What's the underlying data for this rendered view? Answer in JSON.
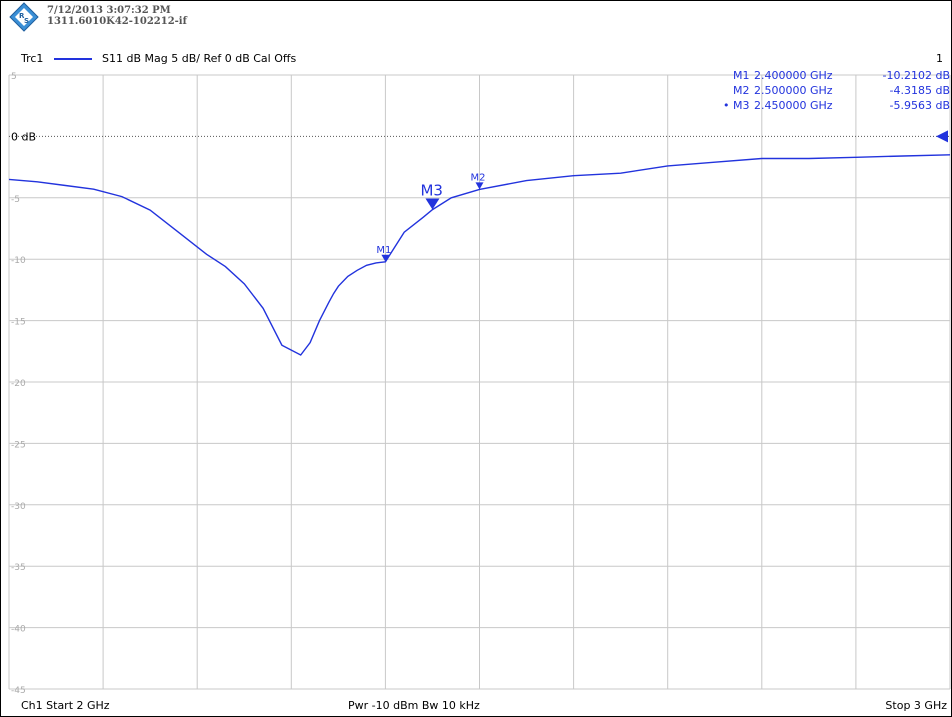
{
  "header": {
    "timestamp": "7/12/2013 3:07:32 PM",
    "device_id": "1311.6010K42-102212-if"
  },
  "trace_bar": {
    "trace_name": "Trc1",
    "trace_desc": "S11  dB Mag  5 dB/ Ref 0 dB  Cal Offs",
    "channel_number": "1"
  },
  "markers_table": [
    {
      "active": "",
      "name": "M1",
      "freq": "2.400000  GHz",
      "value": "-10.2102 dB"
    },
    {
      "active": "",
      "name": "M2",
      "freq": "2.500000  GHz",
      "value": "-4.3185 dB"
    },
    {
      "active": "•",
      "name": "M3",
      "freq": "2.450000  GHz",
      "value": "-5.9563 dB"
    }
  ],
  "footer": {
    "start": "Ch1  Start  2 GHz",
    "middle": "Pwr  -10 dBm  Bw  10 kHz",
    "stop": "Stop  3 GHz"
  },
  "colors": {
    "trace": "#2233dd",
    "grid": "#c8c8c8",
    "reference_line": "#555555"
  },
  "chart_data": {
    "type": "line",
    "title": "",
    "xlabel": "",
    "ylabel": "",
    "xlim": [
      2.0,
      3.0
    ],
    "ylim": [
      -45,
      5
    ],
    "x_unit": "GHz",
    "y_unit": "dB",
    "y_tick_labels": [
      "5",
      "0 dB",
      "-5",
      "-10",
      "-15",
      "-20",
      "-25",
      "-30",
      "-35",
      "-40",
      "-45"
    ],
    "y_ticks": [
      5,
      0,
      -5,
      -10,
      -15,
      -20,
      -25,
      -30,
      -35,
      -40,
      -45
    ],
    "x_divisions": 10,
    "grid": true,
    "reference_level": 0,
    "series": [
      {
        "name": "S11",
        "x": [
          2.0,
          2.03,
          2.06,
          2.09,
          2.12,
          2.15,
          2.18,
          2.21,
          2.23,
          2.25,
          2.27,
          2.29,
          2.31,
          2.32,
          2.33,
          2.34,
          2.345,
          2.35,
          2.36,
          2.37,
          2.38,
          2.39,
          2.4,
          2.42,
          2.44,
          2.45,
          2.47,
          2.5,
          2.55,
          2.6,
          2.65,
          2.7,
          2.75,
          2.8,
          2.85,
          2.9,
          2.95,
          3.0
        ],
        "y": [
          -3.5,
          -3.7,
          -4.0,
          -4.3,
          -4.9,
          -6.0,
          -7.8,
          -9.6,
          -10.6,
          -12.0,
          -14.0,
          -17.0,
          -17.8,
          -16.8,
          -15.0,
          -13.5,
          -12.8,
          -12.2,
          -11.4,
          -10.9,
          -10.5,
          -10.3,
          -10.21,
          -7.8,
          -6.6,
          -5.96,
          -5.0,
          -4.32,
          -3.6,
          -3.2,
          -3.0,
          -2.4,
          -2.1,
          -1.8,
          -1.8,
          -1.7,
          -1.6,
          -1.5
        ]
      }
    ],
    "markers": [
      {
        "name": "M1",
        "x": 2.4,
        "y": -10.2102
      },
      {
        "name": "M2",
        "x": 2.5,
        "y": -4.3185
      },
      {
        "name": "M3",
        "x": 2.45,
        "y": -5.9563
      }
    ]
  }
}
